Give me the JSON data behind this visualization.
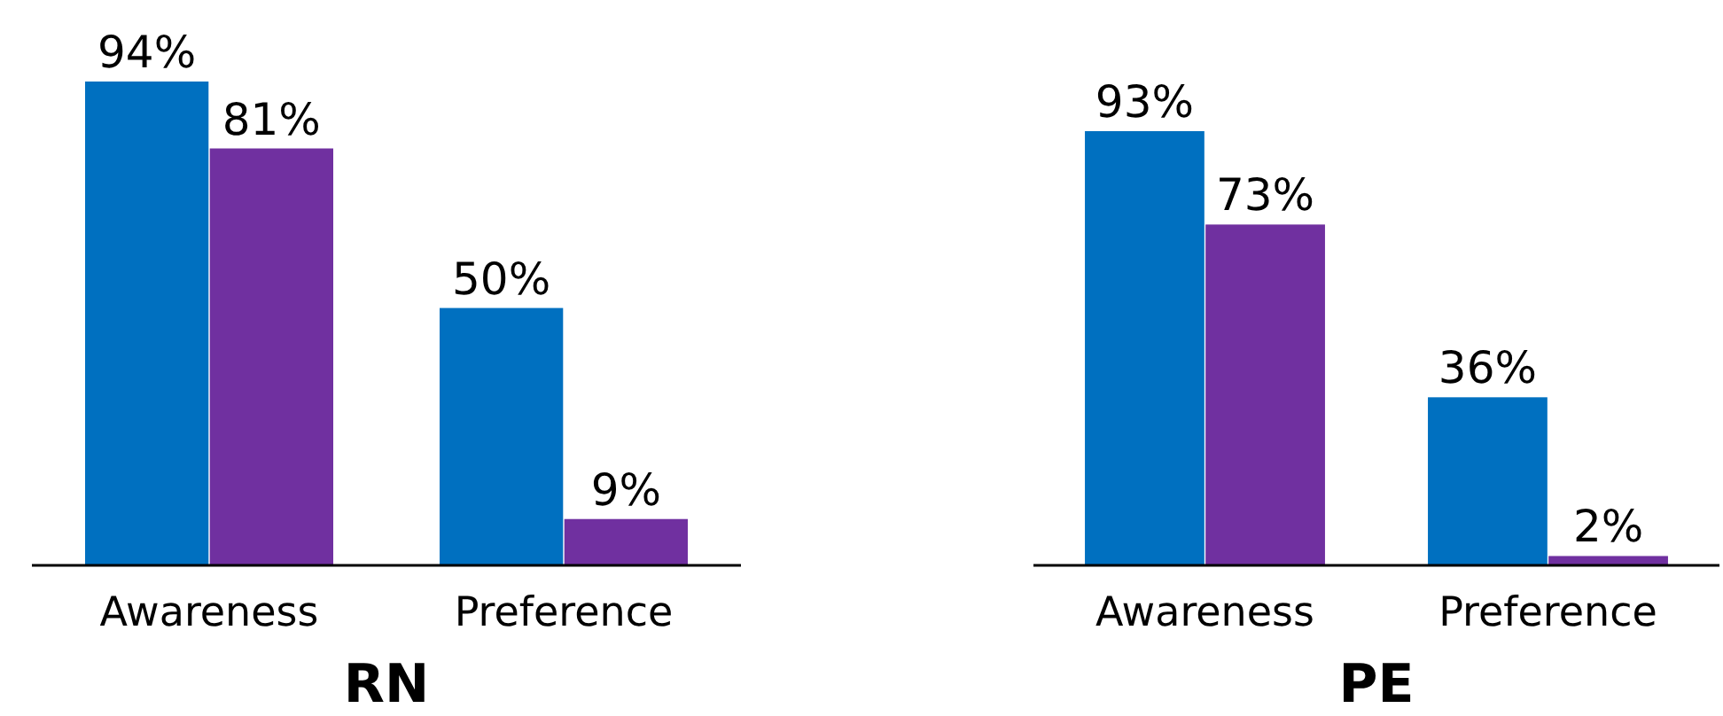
{
  "chart_data": [
    {
      "type": "bar",
      "title": "RN",
      "categories": [
        "Awareness",
        "Preference"
      ],
      "series": [
        {
          "color": "#0070c0",
          "values": [
            94,
            50
          ],
          "value_labels": [
            "94%",
            "50%"
          ]
        },
        {
          "color": "#7030a0",
          "values": [
            81,
            9
          ],
          "value_labels": [
            "81%",
            "9%"
          ]
        }
      ]
    },
    {
      "type": "bar",
      "title": "PE",
      "categories": [
        "Awareness",
        "Preference"
      ],
      "series": [
        {
          "color": "#0070c0",
          "values": [
            93,
            36
          ],
          "value_labels": [
            "93%",
            "36%"
          ]
        },
        {
          "color": "#7030a0",
          "values": [
            73,
            2
          ],
          "value_labels": [
            "73%",
            "2%"
          ]
        }
      ]
    }
  ]
}
